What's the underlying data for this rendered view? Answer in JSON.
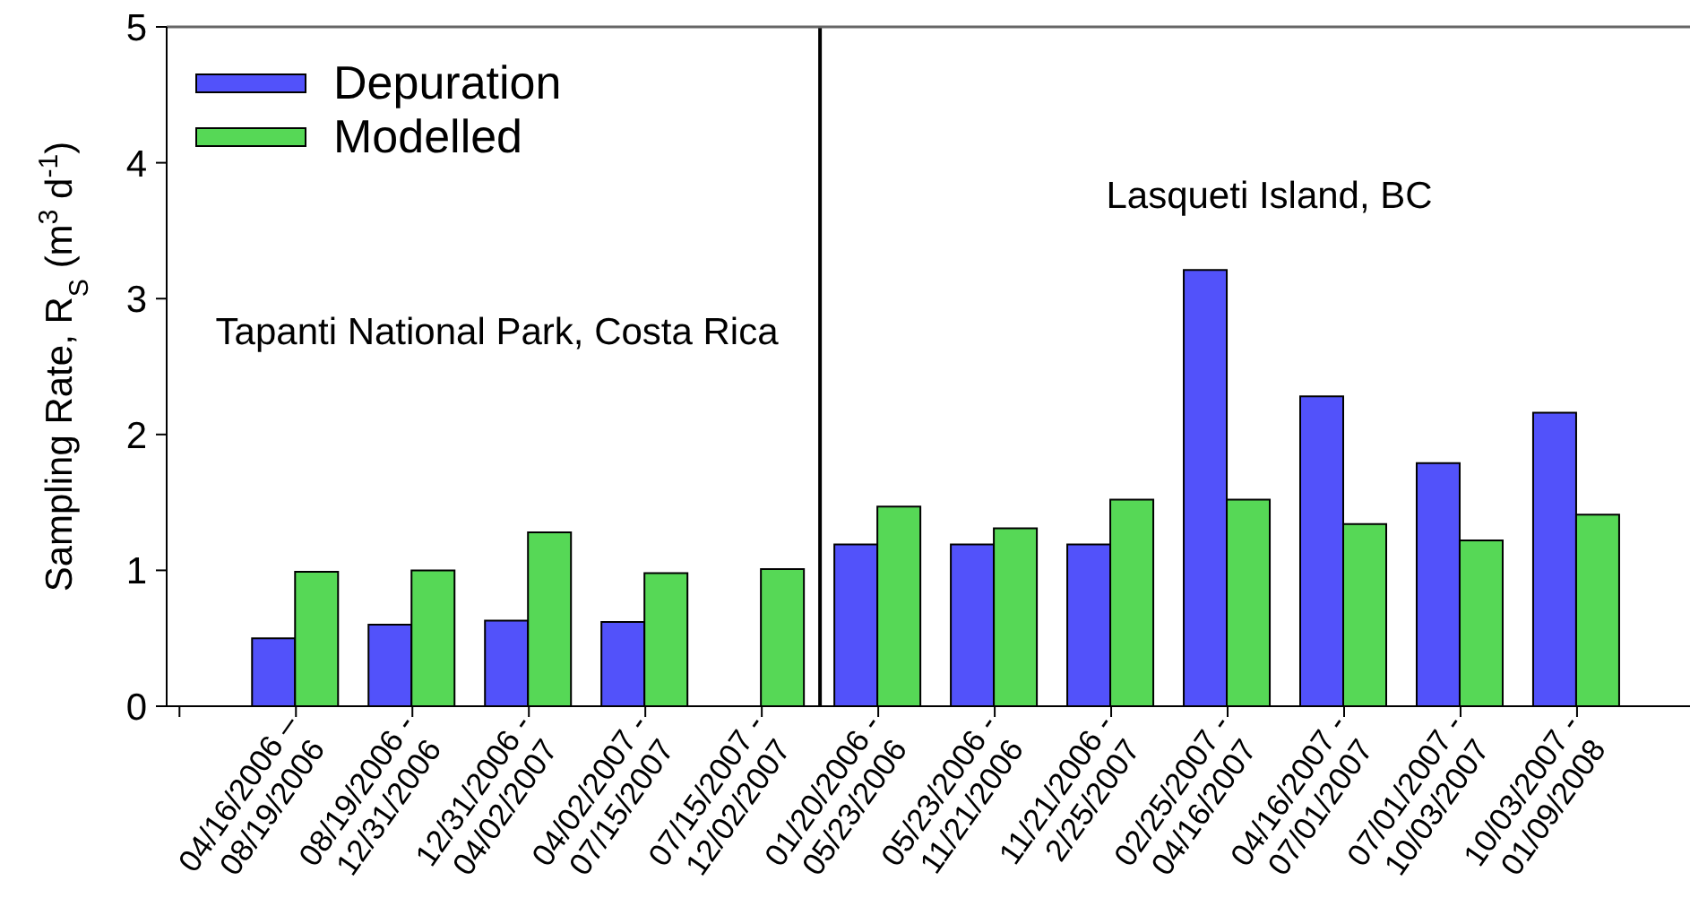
{
  "chart_data": {
    "type": "bar",
    "categories": [
      null,
      "04/16/2006 –\n08/19/2006",
      "08/19/2006 -\n12/31/2006",
      "12/31/2006 -\n04/02/2007",
      "04/02/2007 -\n07/15/2007",
      "07/15/2007 -\n12/02/2007",
      "01/20/2006 -\n05/23/2006",
      "05/23/2006 -\n11/21/2006",
      "11/21/2006 -\n2/25/2007",
      "02/25/2007 -\n04/16/2007",
      "04/16/2007 -\n07/01/2007",
      "07/01/2007 -\n10/03/2007",
      "10/03/2007 -\n01/09/2008"
    ],
    "series": [
      {
        "name": "Depuration",
        "color": "#5252fa",
        "values": [
          null,
          0.5,
          0.6,
          0.63,
          0.62,
          null,
          1.19,
          1.19,
          1.19,
          3.21,
          2.28,
          1.79,
          2.16
        ]
      },
      {
        "name": "Modelled",
        "color": "#56d856",
        "values": [
          null,
          0.99,
          1.0,
          1.28,
          0.98,
          1.01,
          1.47,
          1.31,
          1.52,
          1.52,
          1.34,
          1.22,
          1.41
        ]
      }
    ],
    "ylabel": "Sampling Rate, R$_{S}$ (m$^{3}$ d$^{-1}$)",
    "ylim": [
      0,
      5
    ],
    "yticks": [
      0,
      1,
      2,
      3,
      4,
      5
    ],
    "annotations": [
      "Tapanti National Park, Costa Rica",
      "Lasqueti Island, BC"
    ],
    "legend": "top left"
  }
}
